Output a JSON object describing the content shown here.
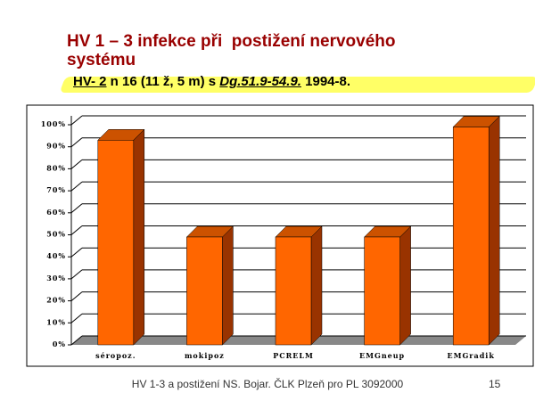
{
  "slide": {
    "title_lines": [
      "HV 1 – 3 infekce při  postižení nervového",
      "systému"
    ],
    "subtitle_parts": [
      "HV- 2",
      " n 16 (11 ž, 5 m) s ",
      "Dg.51.9-54.9.",
      " 1994-8."
    ],
    "footer": "HV 1-3 a postižení NS. Bojar. ČLK Plzeň pro PL 3092000",
    "page_number": "15"
  },
  "chart_data": {
    "type": "bar",
    "categories": [
      "séropoz.",
      "mokipoz",
      "PCRELM",
      "EMGneup",
      "EMGradik"
    ],
    "values": [
      93,
      49,
      49,
      49,
      99
    ],
    "color": "#ff6600",
    "ylim": [
      0,
      100
    ],
    "yticks": [
      {
        "value": 0,
        "label": "0%"
      },
      {
        "value": 10,
        "label": "10%"
      },
      {
        "value": 20,
        "label": "20%"
      },
      {
        "value": 30,
        "label": "30%"
      },
      {
        "value": 40,
        "label": "40%"
      },
      {
        "value": 50,
        "label": "50%"
      },
      {
        "value": 60,
        "label": "60%"
      },
      {
        "value": 70,
        "label": "70%"
      },
      {
        "value": 80,
        "label": "80%"
      },
      {
        "value": 90,
        "label": "90%"
      },
      {
        "value": 100,
        "label": "100%"
      }
    ],
    "grid": true
  }
}
